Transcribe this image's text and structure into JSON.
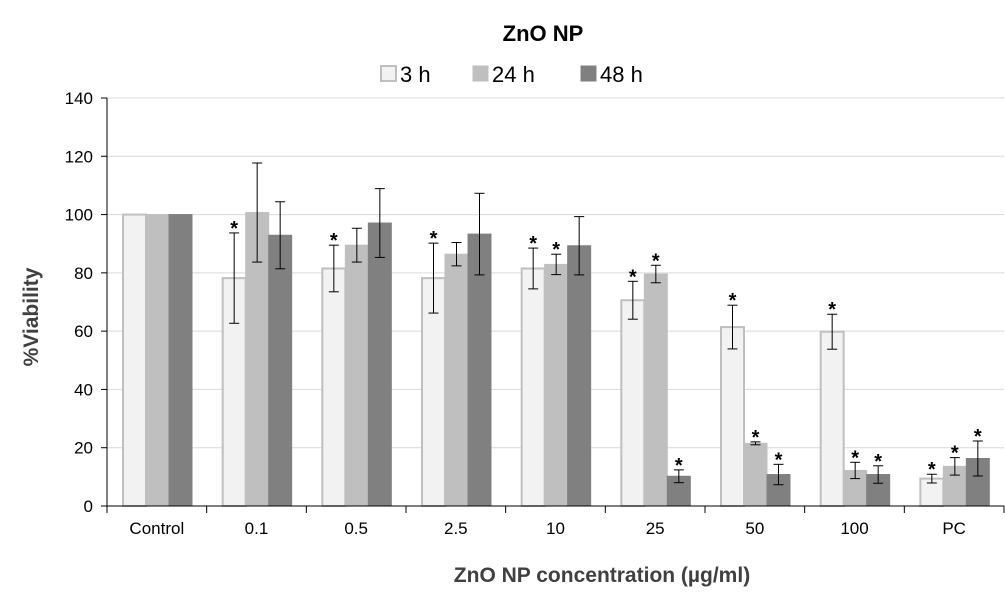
{
  "chart_data": {
    "type": "bar",
    "title": "ZnO NP",
    "xlabel": "ZnO NP concentration (µg/ml)",
    "ylabel": "%Viability",
    "ylim": [
      0,
      140
    ],
    "yticks": [
      0,
      20,
      40,
      60,
      80,
      100,
      120,
      140
    ],
    "grid": true,
    "legend_position": "top",
    "categories": [
      "Control",
      "0.1",
      "0.5",
      "2.5",
      "10",
      "25",
      "50",
      "100",
      "PC"
    ],
    "series": [
      {
        "name": "3 h",
        "color": "#F2F2F2",
        "stroke": "#BFBFBF",
        "values": [
          100,
          78.2,
          81.5,
          78.2,
          81.5,
          70.6,
          61.4,
          59.8,
          9.4
        ],
        "errors": [
          0,
          15.5,
          8.0,
          12.0,
          7.0,
          6.5,
          7.5,
          6.0,
          1.5
        ],
        "significant": [
          false,
          true,
          true,
          true,
          true,
          true,
          true,
          true,
          true
        ]
      },
      {
        "name": "24 h",
        "color": "#BFBFBF",
        "stroke": "#BFBFBF",
        "values": [
          100,
          100.7,
          89.5,
          86.4,
          82.9,
          79.6,
          21.5,
          12.2,
          13.6
        ],
        "errors": [
          0,
          17.0,
          5.8,
          4.0,
          3.5,
          3.0,
          0.5,
          2.8,
          3.0
        ],
        "significant": [
          false,
          false,
          false,
          false,
          true,
          true,
          true,
          true,
          true
        ]
      },
      {
        "name": "48 h",
        "color": "#808080",
        "stroke": "#808080",
        "values": [
          100,
          92.9,
          97.1,
          93.3,
          89.3,
          10.2,
          10.8,
          10.8,
          16.3
        ],
        "errors": [
          0,
          11.5,
          11.8,
          14.0,
          10.0,
          2.2,
          3.5,
          3.0,
          6.0
        ],
        "significant": [
          false,
          false,
          false,
          false,
          false,
          true,
          true,
          true,
          true
        ]
      }
    ],
    "significance_marker": "*"
  }
}
